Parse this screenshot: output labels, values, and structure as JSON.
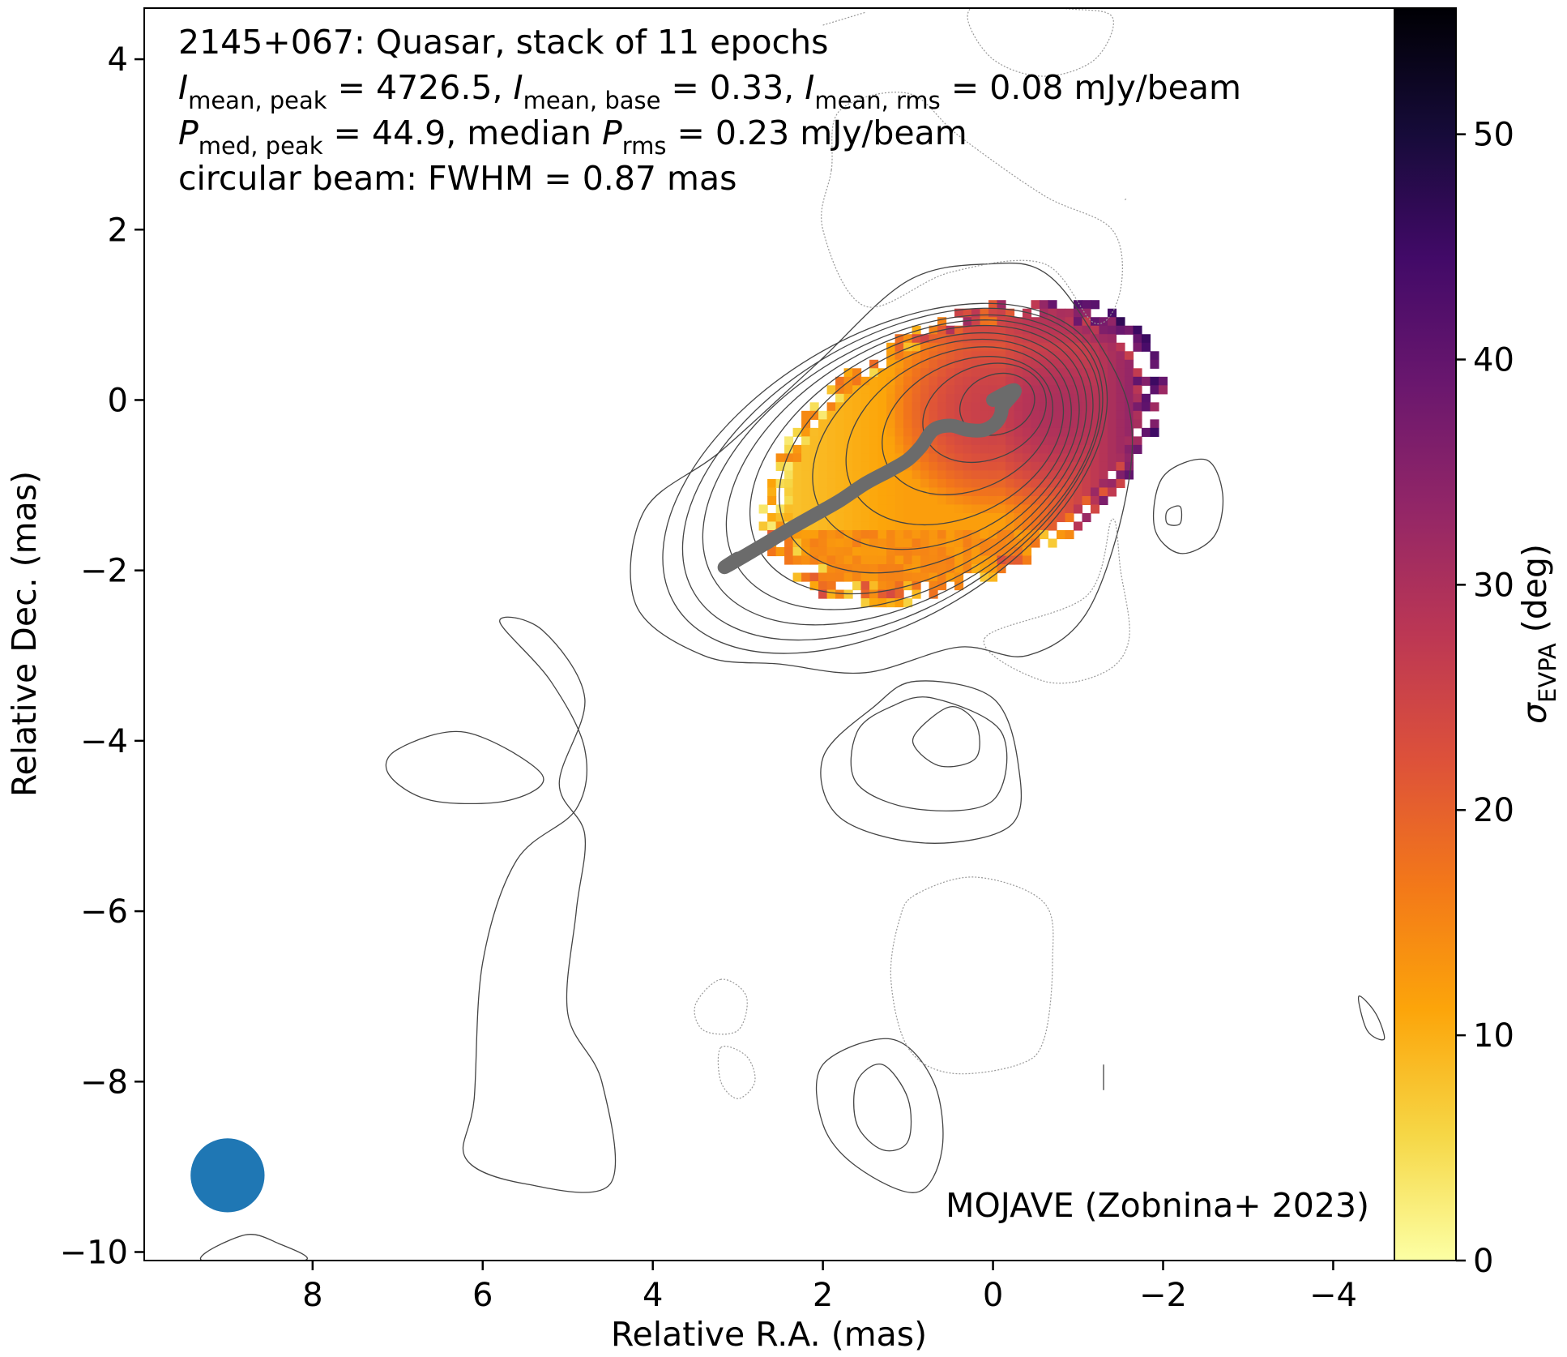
{
  "chart_data": {
    "type": "heatmap",
    "annotation": {
      "line1": "2145+067: Quasar, stack of 11 epochs",
      "line2": {
        "I1_main": "I",
        "I1_sub": "mean, peak",
        "I1_val": " = 4726.5, ",
        "I2_main": "I",
        "I2_sub": "mean, base",
        "I2_val": " = 0.33, ",
        "I3_main": "I",
        "I3_sub": "mean, rms",
        "I3_val": " = 0.08 mJy/beam"
      },
      "line3": {
        "P1_main": "P",
        "P1_sub": "med, peak",
        "P1_val": " = 44.9, median ",
        "P2_main": "P",
        "P2_sub": "rms",
        "P2_val": " = 0.23 mJy/beam"
      },
      "line4": "circular beam: FWHM = 0.87 mas",
      "credit": "MOJAVE (Zobnina+ 2023)"
    },
    "xlabel": "Relative R.A. (mas)",
    "ylabel": "Relative Dec. (mas)",
    "colorbar_label_main": "σ",
    "colorbar_label_sub": "EVPA",
    "colorbar_label_unit": " (deg)",
    "xlim": [
      9.98,
      -4.72
    ],
    "ylim": [
      -10.1,
      4.6
    ],
    "x_ticks": [
      8,
      6,
      4,
      2,
      0,
      -2,
      -4
    ],
    "x_tick_labels": [
      "8",
      "6",
      "4",
      "2",
      "0",
      "−2",
      "−4"
    ],
    "y_ticks": [
      4,
      2,
      0,
      -2,
      -4,
      -6,
      -8,
      -10
    ],
    "y_tick_labels": [
      "4",
      "2",
      "0",
      "−2",
      "−4",
      "−6",
      "−8",
      "−10"
    ],
    "colorbar_range": [
      0,
      55.6
    ],
    "colorbar_ticks": [
      0,
      10,
      20,
      30,
      40,
      50
    ],
    "colorbar_tick_labels": [
      "0",
      "10",
      "20",
      "30",
      "40",
      "50"
    ],
    "colormap": "inferno_r",
    "beam": {
      "x": 9.0,
      "y": -9.1,
      "fwhm": 0.87,
      "color": "#1f77b4"
    },
    "ridgeline": {
      "color": "#6b6b6b",
      "points": [
        [
          0,
          0
        ],
        [
          -0.1,
          -0.1
        ],
        [
          -0.05,
          -0.25
        ],
        [
          0.1,
          -0.35
        ],
        [
          0.3,
          -0.35
        ],
        [
          0.5,
          -0.3
        ],
        [
          0.7,
          -0.35
        ],
        [
          0.85,
          -0.55
        ],
        [
          1.0,
          -0.7
        ],
        [
          1.2,
          -0.82
        ],
        [
          1.5,
          -0.98
        ],
        [
          1.8,
          -1.18
        ],
        [
          2.1,
          -1.35
        ],
        [
          2.4,
          -1.52
        ],
        [
          2.7,
          -1.7
        ],
        [
          3.0,
          -1.86
        ]
      ]
    },
    "contours": {
      "color": "#444444",
      "core_ellipses": [
        {
          "cx": -0.05,
          "cy": -0.05,
          "rx": 0.45,
          "ry": 0.35,
          "angle": -20
        },
        {
          "cx": 0.1,
          "cy": -0.15,
          "rx": 0.75,
          "ry": 0.55,
          "angle": -22
        },
        {
          "cx": 0.3,
          "cy": -0.3,
          "rx": 1.05,
          "ry": 0.75,
          "angle": -25
        },
        {
          "cx": 0.45,
          "cy": -0.42,
          "rx": 1.35,
          "ry": 0.95,
          "angle": -27
        },
        {
          "cx": 0.6,
          "cy": -0.52,
          "rx": 1.62,
          "ry": 1.1,
          "angle": -28
        },
        {
          "cx": 0.75,
          "cy": -0.62,
          "rx": 1.9,
          "ry": 1.22,
          "angle": -29
        },
        {
          "cx": 0.88,
          "cy": -0.7,
          "rx": 2.15,
          "ry": 1.33,
          "angle": -30
        },
        {
          "cx": 0.98,
          "cy": -0.76,
          "rx": 2.35,
          "ry": 1.42,
          "angle": -30
        },
        {
          "cx": 1.08,
          "cy": -0.82,
          "rx": 2.55,
          "ry": 1.5,
          "angle": -30
        },
        {
          "cx": 1.18,
          "cy": -0.87,
          "rx": 2.72,
          "ry": 1.58,
          "angle": -31
        },
        {
          "cx": 1.27,
          "cy": -0.92,
          "rx": 2.88,
          "ry": 1.66,
          "angle": -31
        }
      ],
      "outer_loops": [
        [
          [
            -0.6,
            1.5
          ],
          [
            -1.1,
            0.9
          ],
          [
            -1.6,
            -0.1
          ],
          [
            -1.55,
            -1.2
          ],
          [
            -1.1,
            -2.5
          ],
          [
            -0.4,
            -3.0
          ],
          [
            0.4,
            -2.9
          ],
          [
            1.5,
            -3.2
          ],
          [
            2.5,
            -3.1
          ],
          [
            3.4,
            -3.0
          ],
          [
            4.2,
            -2.4
          ],
          [
            4.1,
            -1.3
          ],
          [
            3.2,
            -0.6
          ],
          [
            2.1,
            0.4
          ],
          [
            1.0,
            1.4
          ],
          [
            0.0,
            1.6
          ]
        ],
        [
          [
            5.8,
            -2.6
          ],
          [
            5.2,
            -3.3
          ],
          [
            4.8,
            -4.1
          ],
          [
            4.9,
            -4.8
          ],
          [
            5.6,
            -5.4
          ],
          [
            6.0,
            -6.6
          ],
          [
            6.1,
            -8.2
          ],
          [
            6.2,
            -8.9
          ],
          [
            5.5,
            -9.2
          ],
          [
            4.5,
            -9.2
          ],
          [
            4.6,
            -8.0
          ],
          [
            5.0,
            -7.2
          ],
          [
            4.9,
            -6.0
          ],
          [
            4.8,
            -5.1
          ],
          [
            5.1,
            -4.5
          ],
          [
            4.8,
            -3.5
          ],
          [
            5.3,
            -2.7
          ]
        ],
        [
          [
            7.0,
            -4.1
          ],
          [
            6.2,
            -3.9
          ],
          [
            5.3,
            -4.4
          ],
          [
            5.7,
            -4.7
          ],
          [
            6.6,
            -4.7
          ],
          [
            7.1,
            -4.4
          ]
        ],
        [
          [
            1.4,
            -3.6
          ],
          [
            0.9,
            -3.3
          ],
          [
            0.0,
            -3.5
          ],
          [
            -0.3,
            -4.3
          ],
          [
            -0.2,
            -5.0
          ],
          [
            0.8,
            -5.2
          ],
          [
            1.8,
            -4.9
          ],
          [
            2.0,
            -4.2
          ]
        ],
        [
          [
            0.9,
            -3.9
          ],
          [
            0.5,
            -3.6
          ],
          [
            0.2,
            -3.8
          ],
          [
            0.2,
            -4.2
          ],
          [
            0.6,
            -4.3
          ],
          [
            0.9,
            -4.1
          ]
        ],
        [
          [
            1.2,
            -3.6
          ],
          [
            0.7,
            -3.5
          ],
          [
            -0.1,
            -3.9
          ],
          [
            0.0,
            -4.7
          ],
          [
            0.9,
            -4.8
          ],
          [
            1.6,
            -4.5
          ],
          [
            1.6,
            -3.9
          ]
        ],
        [
          [
            2.0,
            -7.8
          ],
          [
            1.2,
            -7.5
          ],
          [
            0.7,
            -8.0
          ],
          [
            0.6,
            -8.8
          ],
          [
            0.9,
            -9.3
          ],
          [
            1.6,
            -9.0
          ],
          [
            2.0,
            -8.5
          ]
        ],
        [
          [
            1.6,
            -8.0
          ],
          [
            1.3,
            -7.8
          ],
          [
            1.0,
            -8.2
          ],
          [
            1.0,
            -8.7
          ],
          [
            1.3,
            -8.8
          ],
          [
            1.6,
            -8.5
          ]
        ],
        [
          [
            -2.5,
            -0.7
          ],
          [
            -2.0,
            -0.9
          ],
          [
            -1.9,
            -1.5
          ],
          [
            -2.2,
            -1.8
          ],
          [
            -2.6,
            -1.6
          ],
          [
            -2.7,
            -1.1
          ]
        ],
        [
          [
            -2.2,
            -1.25
          ],
          [
            -2.05,
            -1.3
          ],
          [
            -2.05,
            -1.45
          ],
          [
            -2.2,
            -1.45
          ]
        ],
        [
          [
            -4.3,
            -7.0
          ],
          [
            -4.5,
            -7.2
          ],
          [
            -4.6,
            -7.5
          ],
          [
            -4.4,
            -7.4
          ]
        ],
        [
          [
            -1.3,
            -7.8
          ],
          [
            -1.3,
            -8.1
          ]
        ],
        [
          [
            9.3,
            -10.1
          ],
          [
            8.8,
            -9.8
          ],
          [
            8.4,
            -9.9
          ],
          [
            8.1,
            -10.1
          ]
        ]
      ],
      "dotted_loops": [
        [
          [
            1.9,
            2.7
          ],
          [
            2.0,
            2.0
          ],
          [
            1.5,
            1.1
          ],
          [
            0.5,
            1.5
          ],
          [
            -0.6,
            1.6
          ],
          [
            -1.2,
            0.9
          ],
          [
            -1.5,
            1.3
          ],
          [
            -1.4,
            2.0
          ],
          [
            -0.6,
            2.4
          ],
          [
            0.4,
            3.1
          ],
          [
            1.0,
            3.6
          ],
          [
            1.8,
            3.4
          ]
        ],
        [
          [
            0.3,
            4.5
          ],
          [
            0.0,
            4.7
          ],
          [
            -0.8,
            4.6
          ],
          [
            -1.4,
            4.5
          ],
          [
            -1.2,
            4.0
          ],
          [
            -0.6,
            3.8
          ],
          [
            0.0,
            4.0
          ]
        ],
        [
          [
            2.0,
            4.4
          ],
          [
            1.5,
            4.55
          ]
        ],
        [
          [
            0.1,
            -2.8
          ],
          [
            -1.1,
            -2.3
          ],
          [
            -1.4,
            -1.4
          ],
          [
            -1.5,
            -2.0
          ],
          [
            -1.6,
            -2.8
          ],
          [
            -1.3,
            -3.2
          ],
          [
            -0.6,
            -3.3
          ]
        ],
        [
          [
            0.9,
            -5.8
          ],
          [
            0.2,
            -5.6
          ],
          [
            -0.6,
            -5.9
          ],
          [
            -0.7,
            -6.6
          ],
          [
            -0.6,
            -7.5
          ],
          [
            -0.3,
            -7.8
          ],
          [
            0.5,
            -7.9
          ],
          [
            1.0,
            -7.6
          ],
          [
            1.2,
            -6.8
          ],
          [
            1.1,
            -6.1
          ]
        ],
        [
          [
            3.2,
            -6.8
          ],
          [
            3.5,
            -7.1
          ],
          [
            3.4,
            -7.4
          ],
          [
            3.0,
            -7.4
          ],
          [
            2.9,
            -7.0
          ]
        ],
        [
          [
            3.2,
            -7.6
          ],
          [
            2.9,
            -7.7
          ],
          [
            2.8,
            -8.0
          ],
          [
            3.0,
            -8.2
          ],
          [
            3.2,
            -8.0
          ]
        ],
        [
          [
            -1.55,
            2.35
          ],
          [
            -1.58,
            2.37
          ]
        ]
      ]
    },
    "evpa_map": {
      "pixel_size_mas": 0.1,
      "region": {
        "cx": 0.35,
        "cy": -0.6,
        "rx": 2.55,
        "ry": 1.52,
        "angle": -28
      },
      "note": "colour = sigma_EVPA in deg; values increase toward core/west and north edge"
    }
  }
}
